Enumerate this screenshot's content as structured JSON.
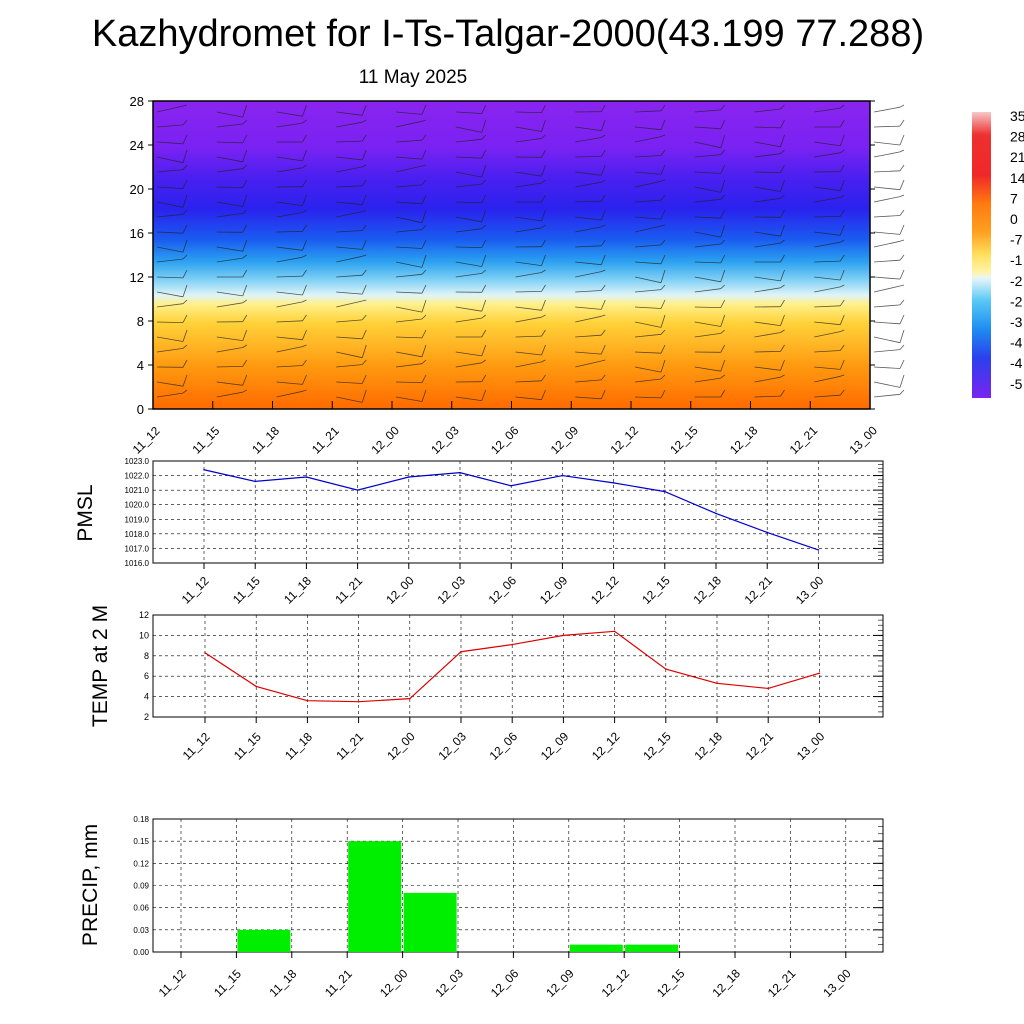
{
  "page": {
    "title": "Kazhydromet for I-Ts-Talgar-2000(43.199 77.288)",
    "subtitle": "11 May 2025"
  },
  "colors": {
    "pmsl_line": "#0000cc",
    "temp_line": "#dd0000",
    "precip_bar": "#00ee00",
    "grid": "#000000"
  },
  "chart_data": [
    {
      "type": "heatmap",
      "name_key": "cross_section",
      "x_ticks": [
        "11_12",
        "11_15",
        "11_18",
        "11_21",
        "12_00",
        "12_03",
        "12_06",
        "12_09",
        "12_12",
        "12_15",
        "12_18",
        "12_21",
        "13_00"
      ],
      "y_ticks": [
        "0",
        "4",
        "8",
        "12",
        "16",
        "20",
        "24",
        "28"
      ],
      "ylim": [
        0,
        28
      ],
      "colorbar_labels": [
        "35",
        "28",
        "21",
        "14",
        "7",
        "0",
        "-7",
        "-1",
        "-2",
        "-2",
        "-3",
        "-4",
        "-4",
        "-5"
      ],
      "notes": "temperature shading with wind barbs; warm (orange/yellow) below ~10, blue near 12-20, purple above 22"
    },
    {
      "type": "line",
      "ylabel": "PMSL",
      "categories": [
        "11_12",
        "11_15",
        "11_18",
        "11_21",
        "12_00",
        "12_03",
        "12_06",
        "12_09",
        "12_12",
        "12_15",
        "12_18",
        "12_21",
        "13_00"
      ],
      "y_ticks": [
        "1023.0",
        "1022.0",
        "1021.0",
        "1020.0",
        "1019.0",
        "1018.0",
        "1017.0",
        "1016.0"
      ],
      "ylim": [
        1016,
        1023
      ],
      "values": [
        1022.4,
        1021.6,
        1021.9,
        1021.0,
        1021.9,
        1022.2,
        1021.3,
        1022.0,
        1021.5,
        1020.9,
        1019.4,
        1018.1,
        1016.9
      ]
    },
    {
      "type": "line",
      "ylabel": "TEMP at 2 M",
      "categories": [
        "11_12",
        "11_15",
        "11_18",
        "11_21",
        "12_00",
        "12_03",
        "12_06",
        "12_09",
        "12_12",
        "12_15",
        "12_18",
        "12_21",
        "13_00"
      ],
      "y_ticks": [
        "12",
        "10",
        "8",
        "6",
        "4",
        "2"
      ],
      "ylim": [
        2,
        12
      ],
      "values": [
        8.3,
        5.0,
        3.6,
        3.5,
        3.8,
        8.4,
        9.1,
        10.0,
        10.4,
        6.7,
        5.3,
        4.8,
        6.3
      ]
    },
    {
      "type": "bar",
      "ylabel": "PRECIP, mm",
      "categories": [
        "11_12",
        "11_15",
        "11_18",
        "11_21",
        "12_00",
        "12_03",
        "12_06",
        "12_09",
        "12_12",
        "12_15",
        "12_18",
        "12_21",
        "13_00"
      ],
      "y_ticks": [
        "0.18",
        "0.15",
        "0.12",
        "0.09",
        "0.06",
        "0.03",
        "0.00"
      ],
      "ylim": [
        0,
        0.18
      ],
      "values": [
        0,
        0.03,
        0,
        0.15,
        0.08,
        0,
        0,
        0.01,
        0.01,
        0,
        0,
        0,
        0
      ]
    }
  ]
}
